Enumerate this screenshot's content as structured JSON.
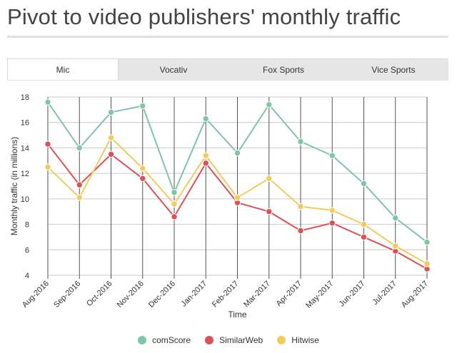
{
  "page_title": "Pivot to video publishers' monthly traffic",
  "tabs": [
    {
      "label": "Mic",
      "active": true
    },
    {
      "label": "Vocativ",
      "active": false
    },
    {
      "label": "Fox Sports",
      "active": false
    },
    {
      "label": "Vice Sports",
      "active": false
    }
  ],
  "chart_data": {
    "type": "line",
    "xlabel": "Time",
    "ylabel": "Monthly traffic (in millions)",
    "ylim": [
      4,
      18
    ],
    "yticks": [
      4,
      6,
      8,
      10,
      12,
      14,
      16,
      18
    ],
    "grid": true,
    "legend_position": "bottom",
    "categories": [
      "Aug-2016",
      "Sep-2016",
      "Oct-2016",
      "Nov-2016",
      "Dec-2016",
      "Jan-2017",
      "Feb-2017",
      "Mar-2017",
      "Apr-2017",
      "May-2017",
      "Jun-2017",
      "Jul-2017",
      "Aug-2017"
    ],
    "series": [
      {
        "name": "comScore",
        "color": "#7fc6a4",
        "values": [
          17.6,
          14.0,
          16.8,
          17.3,
          10.5,
          16.3,
          13.6,
          17.4,
          14.5,
          13.4,
          11.2,
          8.5,
          6.6
        ]
      },
      {
        "name": "SimilarWeb",
        "color": "#db5157",
        "values": [
          14.3,
          11.1,
          13.5,
          11.6,
          8.6,
          12.8,
          9.7,
          9.0,
          7.5,
          8.1,
          7.0,
          5.9,
          4.5
        ]
      },
      {
        "name": "Hitwise",
        "color": "#f2cb5d",
        "values": [
          12.5,
          10.1,
          14.8,
          12.4,
          9.6,
          13.4,
          10.1,
          11.6,
          9.4,
          9.1,
          8.0,
          6.3,
          4.9
        ]
      }
    ]
  }
}
